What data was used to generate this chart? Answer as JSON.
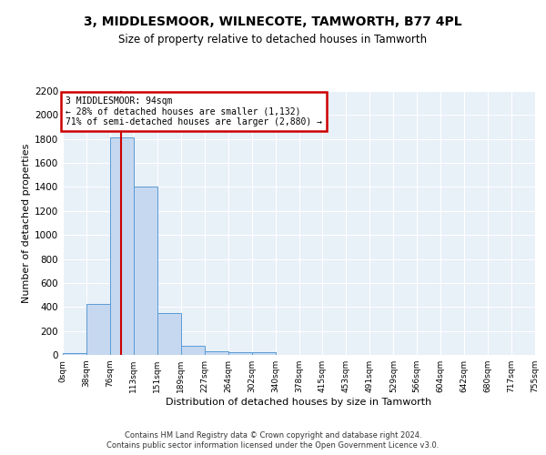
{
  "title_line1": "3, MIDDLESMOOR, WILNECOTE, TAMWORTH, B77 4PL",
  "title_line2": "Size of property relative to detached houses in Tamworth",
  "xlabel": "Distribution of detached houses by size in Tamworth",
  "ylabel": "Number of detached properties",
  "bin_labels": [
    "0sqm",
    "38sqm",
    "76sqm",
    "113sqm",
    "151sqm",
    "189sqm",
    "227sqm",
    "264sqm",
    "302sqm",
    "340sqm",
    "378sqm",
    "415sqm",
    "453sqm",
    "491sqm",
    "529sqm",
    "566sqm",
    "604sqm",
    "642sqm",
    "680sqm",
    "717sqm",
    "755sqm"
  ],
  "bar_values": [
    15,
    425,
    1810,
    1400,
    350,
    75,
    30,
    20,
    25,
    0,
    0,
    0,
    0,
    0,
    0,
    0,
    0,
    0,
    0,
    0
  ],
  "bar_color": "#c5d8f0",
  "bar_edge_color": "#5b9bd5",
  "property_line_x": 94,
  "property_line_color": "#cc0000",
  "annotation_text": "3 MIDDLESMOOR: 94sqm\n← 28% of detached houses are smaller (1,132)\n71% of semi-detached houses are larger (2,880) →",
  "annotation_box_color": "#cc0000",
  "ylim": [
    0,
    2200
  ],
  "yticks": [
    0,
    200,
    400,
    600,
    800,
    1000,
    1200,
    1400,
    1600,
    1800,
    2000,
    2200
  ],
  "background_color": "#e8f0f8",
  "grid_color": "#ffffff",
  "footer_line1": "Contains HM Land Registry data © Crown copyright and database right 2024.",
  "footer_line2": "Contains public sector information licensed under the Open Government Licence v3.0.",
  "bin_width": 38,
  "fig_width": 6.0,
  "fig_height": 5.0,
  "fig_dpi": 100
}
